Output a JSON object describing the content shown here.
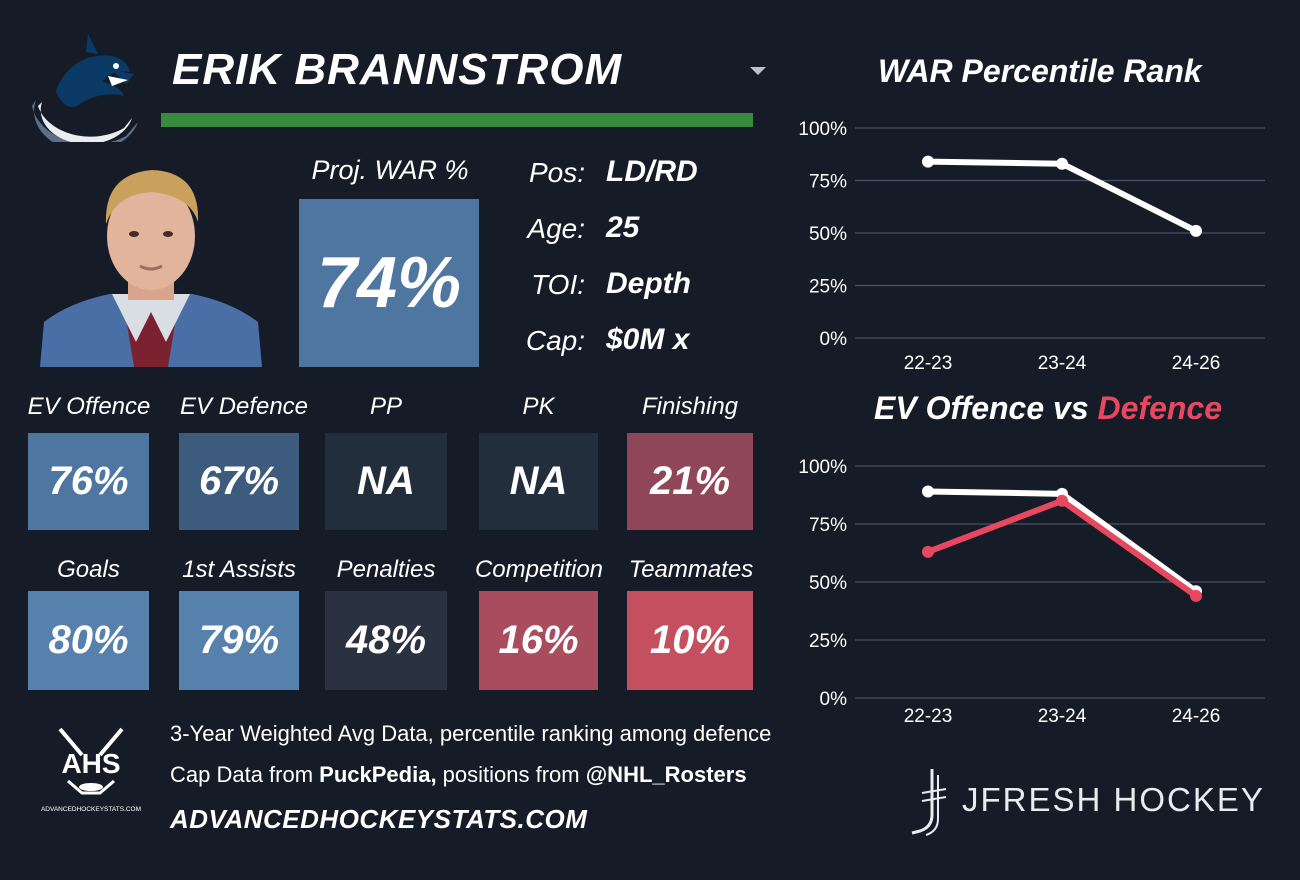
{
  "header": {
    "player_name": "ERIK BRANNSTROM",
    "team_logo_icon": "canucks-orca-logo-icon",
    "dropdown_icon": "chevron-down-icon",
    "underline_color": "#3a8a3e"
  },
  "projected": {
    "label": "Proj. WAR %",
    "value": "74%",
    "color": "#4f76a0"
  },
  "info": [
    {
      "label": "Pos:",
      "value": "LD/RD"
    },
    {
      "label": "Age:",
      "value": "25"
    },
    {
      "label": "TOI:",
      "value": "Depth"
    },
    {
      "label": "Cap:",
      "value": "$0M x"
    }
  ],
  "stats_row1": [
    {
      "label": "EV Offence",
      "value": "76%",
      "color": "#4f76a0"
    },
    {
      "label": "EV Defence",
      "value": "67%",
      "color": "#3d5b7c"
    },
    {
      "label": "PP",
      "value": "NA",
      "color": "#232e3c"
    },
    {
      "label": "PK",
      "value": "NA",
      "color": "#232e3c"
    },
    {
      "label": "Finishing",
      "value": "21%",
      "color": "#8f4658"
    }
  ],
  "stats_row2": [
    {
      "label": "Goals",
      "value": "80%",
      "color": "#5681ac"
    },
    {
      "label": "1st Assists",
      "value": "79%",
      "color": "#5681ac"
    },
    {
      "label": "Penalties",
      "value": "48%",
      "color": "#2a3140"
    },
    {
      "label": "Competition",
      "value": "16%",
      "color": "#a84c5e"
    },
    {
      "label": "Teammates",
      "value": "10%",
      "color": "#c4505f"
    }
  ],
  "footer": {
    "line1": "3-Year Weighted Avg Data, percentile ranking among defence",
    "line2_prefix": "Cap Data from ",
    "line2_source": "PuckPedia,",
    "line2_middle": " positions from ",
    "line2_handle": "@NHL_Rosters",
    "site_url": "ADVANCEDHOCKEYSTATS.COM",
    "ahs_logo_text": "AHS",
    "ahs_logo_subtext": "ADVANCEDHOCKEYSTATS.COM",
    "brand": "JFRESH HOCKEY"
  },
  "chart_data": [
    {
      "type": "line",
      "title": "WAR Percentile Rank",
      "x": [
        "22-23",
        "23-24",
        "24-26"
      ],
      "series": [
        {
          "values": [
            84,
            83,
            51
          ],
          "color": "#ffffff"
        }
      ],
      "ylim": [
        0,
        100
      ],
      "yticks": [
        "0%",
        "25%",
        "50%",
        "75%",
        "100%"
      ],
      "grid": true
    },
    {
      "type": "line",
      "title_part1": "EV Offence vs ",
      "title_part2": "Defence",
      "title_part2_color": "#e8485f",
      "x": [
        "22-23",
        "23-24",
        "24-26"
      ],
      "series": [
        {
          "name": "EV Offence",
          "values": [
            89,
            88,
            46
          ],
          "color": "#ffffff"
        },
        {
          "name": "Defence",
          "values": [
            63,
            85,
            44
          ],
          "color": "#e8485f"
        }
      ],
      "ylim": [
        0,
        100
      ],
      "yticks": [
        "0%",
        "25%",
        "50%",
        "75%",
        "100%"
      ],
      "grid": true
    }
  ]
}
